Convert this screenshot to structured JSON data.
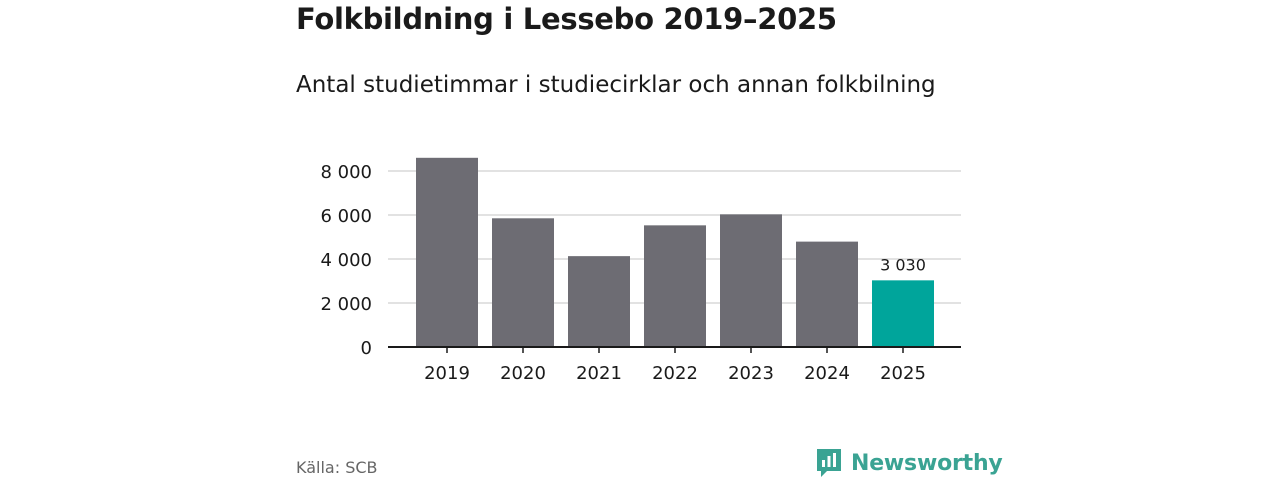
{
  "header": {
    "title": "Folkbildning i Lessebo 2019–2025",
    "subtitle": "Antal studietimmar i studiecirklar och annan folkbilning"
  },
  "footer": {
    "source": "Källa: SCB",
    "brand": "Newsworthy"
  },
  "colors": {
    "bar": "#6d6c73",
    "highlight": "#00a59b",
    "grid": "#d9d9d9",
    "axis": "#1a1a1a",
    "brand": "#3aa393"
  },
  "chart_data": {
    "type": "bar",
    "categories": [
      "2019",
      "2020",
      "2021",
      "2022",
      "2023",
      "2024",
      "2025"
    ],
    "values": [
      8600,
      5850,
      4130,
      5530,
      6030,
      4790,
      3030
    ],
    "ylim": [
      0,
      8000
    ],
    "yticks": [
      0,
      2000,
      4000,
      6000,
      8000
    ],
    "ytick_labels": [
      "0",
      "2 000",
      "4 000",
      "6 000",
      "8 000"
    ],
    "highlight_index": 6,
    "data_labels": [
      {
        "index": 6,
        "text": "3 030"
      }
    ],
    "grid": true,
    "xlabel": "",
    "ylabel": ""
  }
}
